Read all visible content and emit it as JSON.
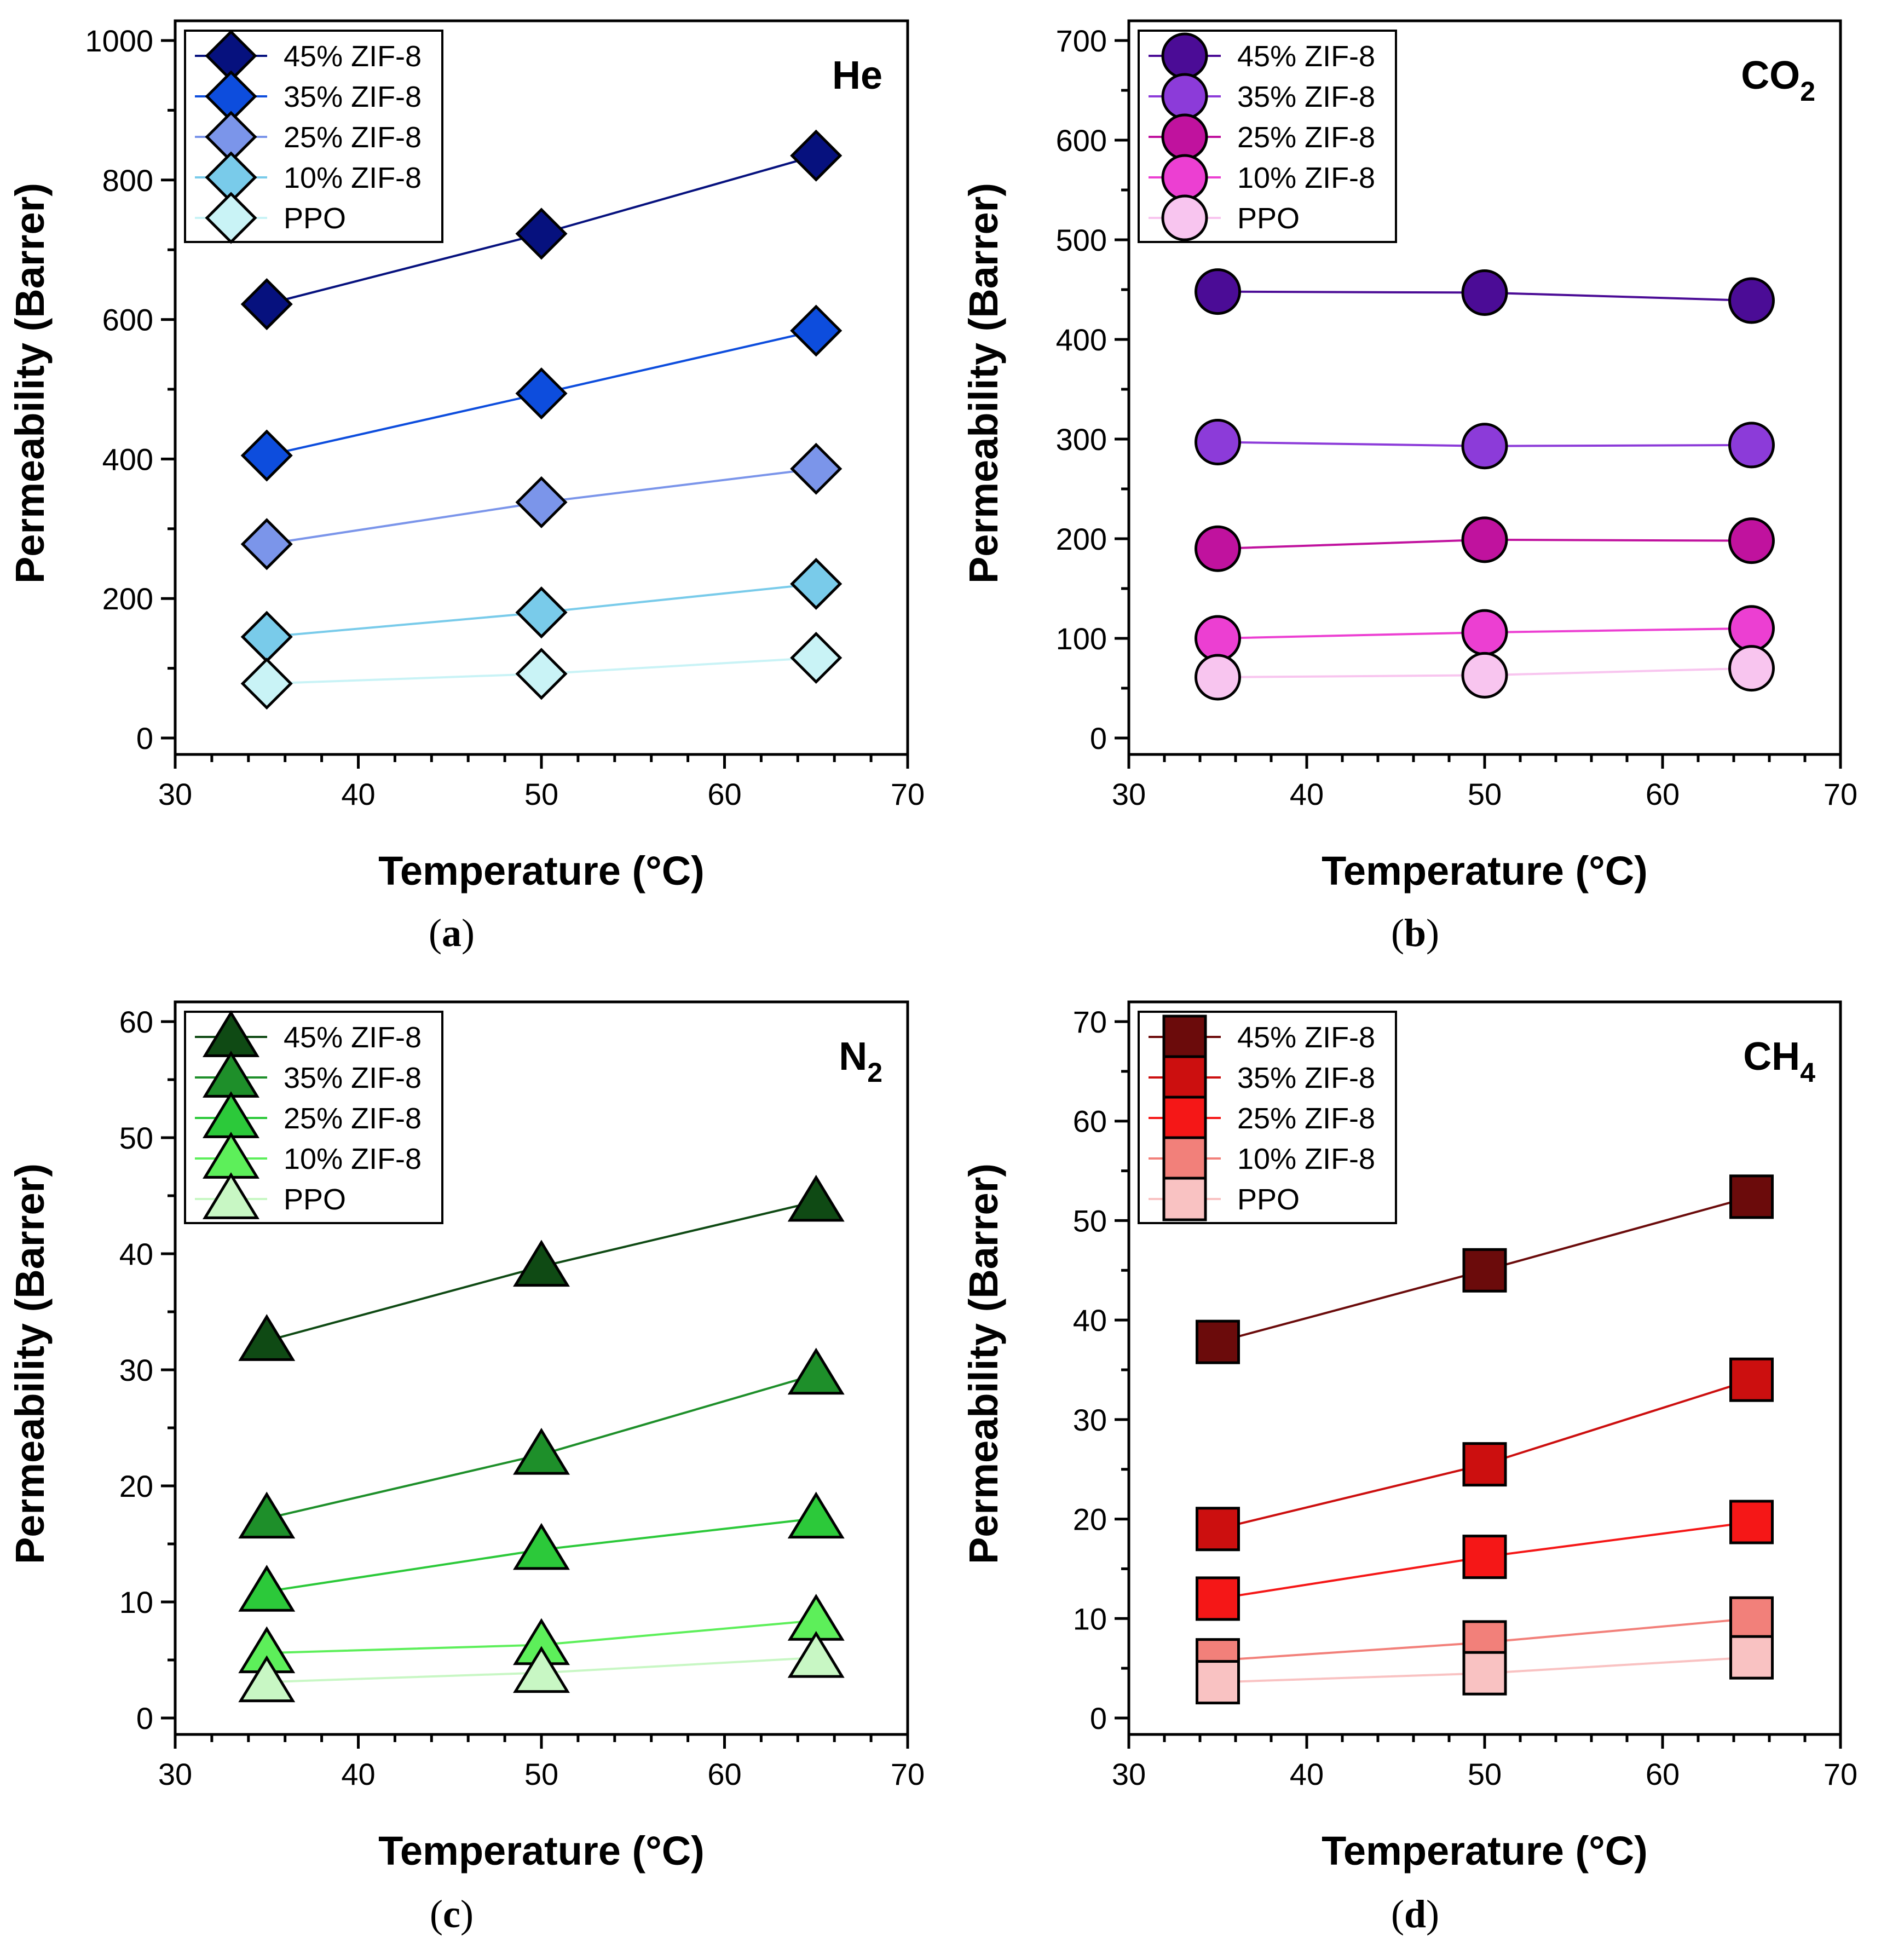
{
  "chart_data": [
    {
      "type": "line",
      "caption": "a",
      "gas": "He",
      "gas_subscript": "",
      "marker": "diamond",
      "xlabel": "Temperature (°C)",
      "ylabel": "Permeability (Barrer)",
      "xlim": [
        30,
        70
      ],
      "ylim": [
        0,
        1000
      ],
      "xticks": [
        30,
        40,
        50,
        60,
        70
      ],
      "yticks": [
        0,
        200,
        400,
        600,
        800,
        1000
      ],
      "x": [
        35,
        50,
        65
      ],
      "series": [
        {
          "name": "45% ZIF-8",
          "values": [
            622,
            723,
            835
          ],
          "color": "#06117e"
        },
        {
          "name": "35% ZIF-8",
          "values": [
            405,
            494,
            584
          ],
          "color": "#0d4ddd"
        },
        {
          "name": "25% ZIF-8",
          "values": [
            278,
            338,
            386
          ],
          "color": "#7b95ea"
        },
        {
          "name": "10% ZIF-8",
          "values": [
            145,
            180,
            221
          ],
          "color": "#79cbea"
        },
        {
          "name": "PPO",
          "values": [
            78,
            92,
            115
          ],
          "color": "#c9f3f6"
        }
      ]
    },
    {
      "type": "line",
      "caption": "b",
      "gas": "CO",
      "gas_subscript": "2",
      "marker": "circle",
      "xlabel": "Temperature (°C)",
      "ylabel": "Permeability (Barrer)",
      "xlim": [
        30,
        70
      ],
      "ylim": [
        0,
        700
      ],
      "xticks": [
        30,
        40,
        50,
        60,
        70
      ],
      "yticks": [
        0,
        100,
        200,
        300,
        400,
        500,
        600,
        700
      ],
      "x": [
        35,
        50,
        65
      ],
      "series": [
        {
          "name": "45% ZIF-8",
          "values": [
            448,
            447,
            439
          ],
          "color": "#4b0c96"
        },
        {
          "name": "35% ZIF-8",
          "values": [
            297,
            293,
            294
          ],
          "color": "#8c3bd9"
        },
        {
          "name": "25% ZIF-8",
          "values": [
            190,
            199,
            198
          ],
          "color": "#c0129e"
        },
        {
          "name": "10% ZIF-8",
          "values": [
            100,
            106,
            110
          ],
          "color": "#ec3fd2"
        },
        {
          "name": "PPO",
          "values": [
            61,
            63,
            70
          ],
          "color": "#f8c5ef"
        }
      ]
    },
    {
      "type": "line",
      "caption": "c",
      "gas": "N",
      "gas_subscript": "2",
      "marker": "triangle",
      "xlabel": "Temperature (°C)",
      "ylabel": "Permeability (Barrer)",
      "xlim": [
        30,
        70
      ],
      "ylim": [
        0,
        60
      ],
      "xticks": [
        30,
        40,
        50,
        60,
        70
      ],
      "yticks": [
        0,
        10,
        20,
        30,
        40,
        50,
        60
      ],
      "x": [
        35,
        50,
        65
      ],
      "series": [
        {
          "name": "45% ZIF-8",
          "values": [
            32.5,
            38.9,
            44.5
          ],
          "color": "#0f4a14"
        },
        {
          "name": "35% ZIF-8",
          "values": [
            17.2,
            22.7,
            29.6
          ],
          "color": "#1e8f2a"
        },
        {
          "name": "25% ZIF-8",
          "values": [
            10.9,
            14.5,
            17.2
          ],
          "color": "#2cc93a"
        },
        {
          "name": "10% ZIF-8",
          "values": [
            5.6,
            6.3,
            8.4
          ],
          "color": "#5def5a"
        },
        {
          "name": "PPO",
          "values": [
            3.1,
            3.9,
            5.2
          ],
          "color": "#c8f7c4"
        }
      ]
    },
    {
      "type": "line",
      "caption": "d",
      "gas": "CH",
      "gas_subscript": "4",
      "marker": "square",
      "xlabel": "Temperature (°C)",
      "ylabel": "Permeability (Barrer)",
      "xlim": [
        30,
        70
      ],
      "ylim": [
        0,
        70
      ],
      "xticks": [
        30,
        40,
        50,
        60,
        70
      ],
      "yticks": [
        0,
        10,
        20,
        30,
        40,
        50,
        60,
        70
      ],
      "x": [
        35,
        50,
        65
      ],
      "series": [
        {
          "name": "45% ZIF-8",
          "values": [
            37.8,
            45.0,
            52.4
          ],
          "color": "#6b0b0b"
        },
        {
          "name": "35% ZIF-8",
          "values": [
            19.0,
            25.5,
            34.0
          ],
          "color": "#cc0f0f"
        },
        {
          "name": "25% ZIF-8",
          "values": [
            12.0,
            16.2,
            19.7
          ],
          "color": "#f51717"
        },
        {
          "name": "10% ZIF-8",
          "values": [
            5.8,
            7.6,
            10.0
          ],
          "color": "#f2807a"
        },
        {
          "name": "PPO",
          "values": [
            3.6,
            4.5,
            6.1
          ],
          "color": "#f9c2c2"
        }
      ]
    }
  ]
}
